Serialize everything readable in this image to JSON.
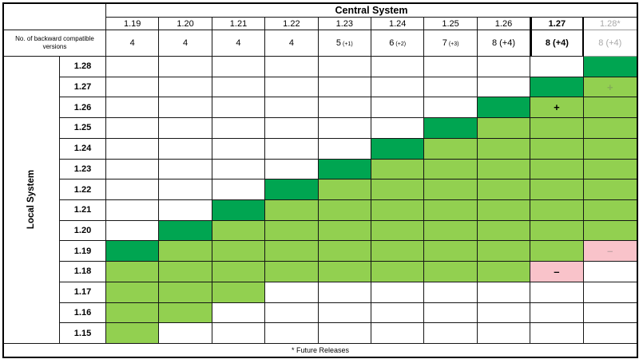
{
  "header": {
    "title": "Central System",
    "corner": "",
    "backward_compat_label": "No. of backward compatible versions",
    "columns": [
      {
        "version": "1.19",
        "count_main": "4",
        "count_small": "",
        "style": "normal"
      },
      {
        "version": "1.20",
        "count_main": "4",
        "count_small": "",
        "style": "normal"
      },
      {
        "version": "1.21",
        "count_main": "4",
        "count_small": "",
        "style": "normal"
      },
      {
        "version": "1.22",
        "count_main": "4",
        "count_small": "",
        "style": "normal"
      },
      {
        "version": "1.23",
        "count_main": "5",
        "count_small": "(+1)",
        "style": "normal"
      },
      {
        "version": "1.24",
        "count_main": "6",
        "count_small": "(+2)",
        "style": "normal"
      },
      {
        "version": "1.25",
        "count_main": "7",
        "count_small": "(+3)",
        "style": "normal"
      },
      {
        "version": "1.26",
        "count_main": "8 (+4)",
        "count_small": "",
        "style": "normal"
      },
      {
        "version": "1.27",
        "count_main": "8 (+4)",
        "count_small": "",
        "style": "bold"
      },
      {
        "version": "1.28*",
        "count_main": "8 (+4)",
        "count_small": "",
        "style": "future"
      }
    ]
  },
  "side": {
    "label": "Local System"
  },
  "rows": [
    {
      "version": "1.28",
      "cells": [
        "w",
        "w",
        "w",
        "w",
        "w",
        "w",
        "w",
        "w",
        "w",
        "d"
      ]
    },
    {
      "version": "1.27",
      "cells": [
        "w",
        "w",
        "w",
        "w",
        "w",
        "w",
        "w",
        "w",
        "d",
        "c+g"
      ]
    },
    {
      "version": "1.26",
      "cells": [
        "w",
        "w",
        "w",
        "w",
        "w",
        "w",
        "w",
        "d",
        "c+",
        "c"
      ]
    },
    {
      "version": "1.25",
      "cells": [
        "w",
        "w",
        "w",
        "w",
        "w",
        "w",
        "d",
        "c",
        "c",
        "c"
      ]
    },
    {
      "version": "1.24",
      "cells": [
        "w",
        "w",
        "w",
        "w",
        "w",
        "d",
        "c",
        "c",
        "c",
        "c"
      ]
    },
    {
      "version": "1.23",
      "cells": [
        "w",
        "w",
        "w",
        "w",
        "d",
        "c",
        "c",
        "c",
        "c",
        "c"
      ]
    },
    {
      "version": "1.22",
      "cells": [
        "w",
        "w",
        "w",
        "d",
        "c",
        "c",
        "c",
        "c",
        "c",
        "c"
      ]
    },
    {
      "version": "1.21",
      "cells": [
        "w",
        "w",
        "d",
        "c",
        "c",
        "c",
        "c",
        "c",
        "c",
        "c"
      ]
    },
    {
      "version": "1.20",
      "cells": [
        "w",
        "d",
        "c",
        "c",
        "c",
        "c",
        "c",
        "c",
        "c",
        "c"
      ]
    },
    {
      "version": "1.19",
      "cells": [
        "d",
        "c",
        "c",
        "c",
        "c",
        "c",
        "c",
        "c",
        "c",
        "p-g"
      ]
    },
    {
      "version": "1.18",
      "cells": [
        "c",
        "c",
        "c",
        "c",
        "c",
        "c",
        "c",
        "c",
        "p-",
        "w"
      ]
    },
    {
      "version": "1.17",
      "cells": [
        "c",
        "c",
        "c",
        "w",
        "w",
        "w",
        "w",
        "w",
        "w",
        "w"
      ]
    },
    {
      "version": "1.16",
      "cells": [
        "c",
        "c",
        "w",
        "w",
        "w",
        "w",
        "w",
        "w",
        "w",
        "w"
      ]
    },
    {
      "version": "1.15",
      "cells": [
        "c",
        "w",
        "w",
        "w",
        "w",
        "w",
        "w",
        "w",
        "w",
        "w"
      ]
    }
  ],
  "footer": {
    "note": "* Future Releases"
  },
  "symbols": {
    "plus": "+",
    "minus": "–"
  },
  "colors": {
    "match": "#00a551",
    "compatible": "#92d050",
    "incompatible": "#f9c3ca",
    "empty": "#ffffff",
    "future_text": "#a9a9a9"
  },
  "chart_data": {
    "type": "heatmap",
    "xlabel": "Central System",
    "ylabel": "Local System",
    "x_categories": [
      "1.19",
      "1.20",
      "1.21",
      "1.22",
      "1.23",
      "1.24",
      "1.25",
      "1.26",
      "1.27",
      "1.28*"
    ],
    "y_categories": [
      "1.28",
      "1.27",
      "1.26",
      "1.25",
      "1.24",
      "1.23",
      "1.22",
      "1.21",
      "1.20",
      "1.19",
      "1.18",
      "1.17",
      "1.16",
      "1.15"
    ],
    "backward_compatible_counts": [
      "4",
      "4",
      "4",
      "4",
      "5 (+1)",
      "6 (+2)",
      "7 (+3)",
      "8 (+4)",
      "8 (+4)",
      "8 (+4)"
    ],
    "values": [
      [
        "w",
        "w",
        "w",
        "w",
        "w",
        "w",
        "w",
        "w",
        "w",
        "d"
      ],
      [
        "w",
        "w",
        "w",
        "w",
        "w",
        "w",
        "w",
        "w",
        "d",
        "c+g"
      ],
      [
        "w",
        "w",
        "w",
        "w",
        "w",
        "w",
        "w",
        "d",
        "c+",
        "c"
      ],
      [
        "w",
        "w",
        "w",
        "w",
        "w",
        "w",
        "d",
        "c",
        "c",
        "c"
      ],
      [
        "w",
        "w",
        "w",
        "w",
        "w",
        "d",
        "c",
        "c",
        "c",
        "c"
      ],
      [
        "w",
        "w",
        "w",
        "w",
        "d",
        "c",
        "c",
        "c",
        "c",
        "c"
      ],
      [
        "w",
        "w",
        "w",
        "d",
        "c",
        "c",
        "c",
        "c",
        "c",
        "c"
      ],
      [
        "w",
        "w",
        "d",
        "c",
        "c",
        "c",
        "c",
        "c",
        "c",
        "c"
      ],
      [
        "w",
        "d",
        "c",
        "c",
        "c",
        "c",
        "c",
        "c",
        "c",
        "c"
      ],
      [
        "d",
        "c",
        "c",
        "c",
        "c",
        "c",
        "c",
        "c",
        "c",
        "p-g"
      ],
      [
        "c",
        "c",
        "c",
        "c",
        "c",
        "c",
        "c",
        "c",
        "p-",
        "w"
      ],
      [
        "c",
        "c",
        "c",
        "w",
        "w",
        "w",
        "w",
        "w",
        "w",
        "w"
      ],
      [
        "c",
        "c",
        "w",
        "w",
        "w",
        "w",
        "w",
        "w",
        "w",
        "w"
      ],
      [
        "c",
        "w",
        "w",
        "w",
        "w",
        "w",
        "w",
        "w",
        "w",
        "w"
      ]
    ],
    "cell_legend": {
      "d": "same version match (dark green)",
      "c": "backward compatible (light green)",
      "w": "not compatible (white)",
      "p": "compatibility removed (pink)",
      "+": "plus symbol shown in cell",
      "-": "minus symbol shown in cell",
      "g": "symbol grayed (future release)"
    },
    "footnote": "* Future Releases",
    "legend_position": "none",
    "grid": true
  }
}
